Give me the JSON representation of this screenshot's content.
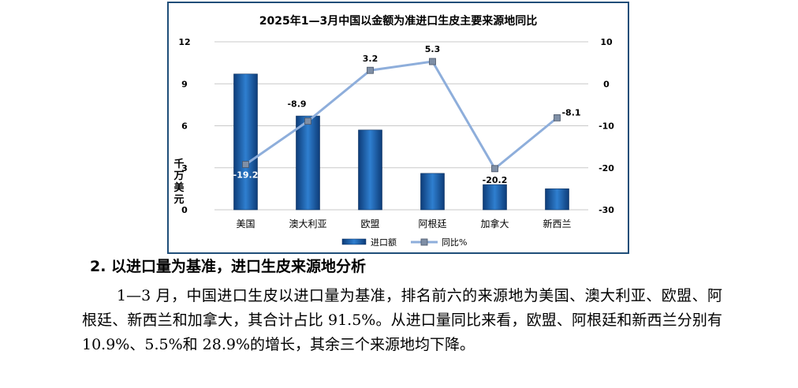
{
  "chart_data": {
    "type": "bar",
    "title": "2025年1—3月中国以金额为准进口生皮主要来源地同比",
    "categories": [
      "美国",
      "澳大利亚",
      "欧盟",
      "阿根廷",
      "加拿大",
      "新西兰"
    ],
    "series": [
      {
        "name": "进口额",
        "type": "bar",
        "axis": "left",
        "values": [
          9.7,
          6.7,
          5.7,
          2.6,
          1.8,
          1.5
        ],
        "color": "#1f5fa8"
      },
      {
        "name": "同比%",
        "type": "line",
        "axis": "right",
        "values": [
          -19.2,
          -8.9,
          3.2,
          5.3,
          -20.2,
          -8.1
        ],
        "color": "#8eaedb"
      }
    ],
    "data_labels": [
      "-19.2",
      "-8.9",
      "3.2",
      "5.3",
      "-20.2",
      "-8.1"
    ],
    "ylabel": "千万美元",
    "ylim": [
      0,
      12
    ],
    "yticks": [
      "0",
      "3",
      "6",
      "9",
      "12"
    ],
    "y2lim": [
      -30,
      10
    ],
    "y2ticks": [
      "-30",
      "-20",
      "-10",
      "0",
      "10"
    ],
    "grid": true,
    "legend_position": "bottom"
  },
  "section": {
    "heading": "2. 以进口量为基准，进口生皮来源地分析",
    "paragraph": "1—3 月，中国进口生皮以进口量为基准，排名前六的来源地为美国、澳大利亚、欧盟、阿根廷、新西兰和加拿大，其合计占比 91.5%。从进口量同比来看，欧盟、阿根廷和新西兰分别有 10.9%、5.5%和 28.9%的增长，其余三个来源地均下降。"
  }
}
